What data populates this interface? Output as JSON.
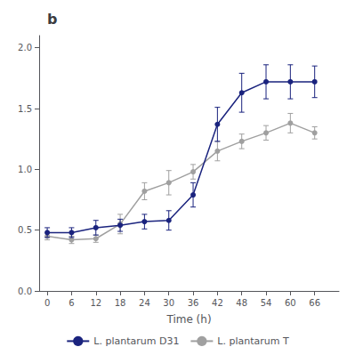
{
  "chart_data": {
    "type": "line",
    "title": "b",
    "xlabel": "Time (h)",
    "x": [
      0,
      6,
      12,
      18,
      24,
      30,
      36,
      42,
      48,
      54,
      60,
      66
    ],
    "series": [
      {
        "name": "L. plantarum D31",
        "color": "#1a237e",
        "values": [
          0.48,
          0.48,
          0.52,
          0.54,
          0.57,
          0.58,
          0.79,
          1.37,
          1.63,
          1.72,
          1.72,
          1.72
        ],
        "errors": [
          0.04,
          0.04,
          0.06,
          0.05,
          0.06,
          0.08,
          0.1,
          0.14,
          0.16,
          0.14,
          0.14,
          0.13
        ]
      },
      {
        "name": "L. plantarum T",
        "color": "#a0a0a0",
        "values": [
          0.45,
          0.42,
          0.43,
          0.55,
          0.82,
          0.89,
          0.98,
          1.15,
          1.23,
          1.3,
          1.38,
          1.3
        ],
        "errors": [
          0.03,
          0.03,
          0.03,
          0.08,
          0.07,
          0.1,
          0.06,
          0.08,
          0.06,
          0.06,
          0.08,
          0.05
        ]
      }
    ],
    "xlim": [
      -2,
      72
    ],
    "ylim": [
      0.0,
      2.1
    ],
    "xticks": [
      0,
      6,
      12,
      18,
      24,
      30,
      36,
      42,
      48,
      54,
      60,
      66
    ],
    "yticks": [
      {
        "value": 0.0,
        "label": "0.0"
      },
      0.5,
      {
        "value": 1.0,
        "label": "1.0"
      },
      1.5,
      {
        "value": 2.0,
        "label": "2.0"
      }
    ],
    "grid": false,
    "legend": "bottom",
    "marker": "circle"
  }
}
